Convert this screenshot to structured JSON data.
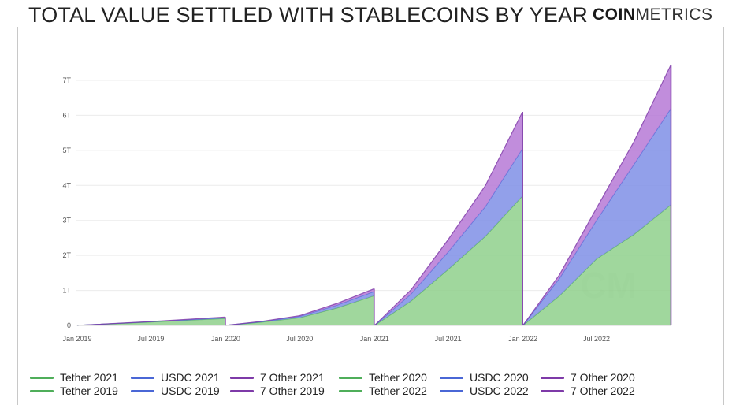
{
  "header": {
    "title": "TOTAL VALUE SETTLED WITH STABLECOINS BY YEAR",
    "brand_bold": "COIN",
    "brand_light": "METRICS",
    "watermark": "CM"
  },
  "colors": {
    "tether": "#8fd08c",
    "usdc": "#7f8fe6",
    "other": "#b679d6",
    "tether_line": "#4fae5a",
    "usdc_line": "#4a67d6",
    "other_line": "#7e3aa8",
    "grid": "#ececec"
  },
  "chart_data": {
    "type": "area",
    "stacked": true,
    "xlabel": "",
    "ylabel": "",
    "x_ticks": [
      "Jan 2019",
      "Jul 2019",
      "Jan 2020",
      "Jul 2020",
      "Jan 2021",
      "Jul 2021",
      "Jan 2022",
      "Jul 2022"
    ],
    "y_ticks": [
      "0",
      "1T",
      "2T",
      "3T",
      "4T",
      "5T",
      "6T",
      "7T"
    ],
    "ylim": [
      0,
      7
    ],
    "y_unit": "trillion USD",
    "grid": true,
    "legend_position": "bottom",
    "legend": [
      "Tether 2021",
      "USDC 2021",
      "7 Other 2021",
      "Tether 2020",
      "USDC 2020",
      "7 Other 2020",
      "Tether 2019",
      "USDC 2019",
      "7 Other 2019",
      "Tether 2022",
      "USDC 2022",
      "7 Other 2022"
    ],
    "series": [
      {
        "year": "2019",
        "x": [
          "2019-01-01",
          "2019-07-01",
          "2019-12-31"
        ],
        "tether": [
          0,
          0.1,
          0.2
        ],
        "usdc": [
          0,
          0.005,
          0.02
        ],
        "other": [
          0,
          0.005,
          0.02
        ]
      },
      {
        "year": "2020",
        "x": [
          "2020-01-01",
          "2020-04-01",
          "2020-07-01",
          "2020-10-01",
          "2020-12-31"
        ],
        "tether": [
          0,
          0.1,
          0.22,
          0.5,
          0.85
        ],
        "usdc": [
          0,
          0.01,
          0.04,
          0.08,
          0.12
        ],
        "other": [
          0,
          0.01,
          0.02,
          0.05,
          0.08
        ]
      },
      {
        "year": "2021",
        "x": [
          "2021-01-01",
          "2021-04-01",
          "2021-07-01",
          "2021-10-01",
          "2021-12-31"
        ],
        "tether": [
          0,
          0.7,
          1.6,
          2.55,
          3.7
        ],
        "usdc": [
          0,
          0.2,
          0.5,
          0.85,
          1.35
        ],
        "other": [
          0,
          0.12,
          0.35,
          0.6,
          1.05
        ]
      },
      {
        "year": "2022",
        "x": [
          "2022-01-01",
          "2022-04-01",
          "2022-07-01",
          "2022-10-01",
          "2022-12-31"
        ],
        "tether": [
          0,
          0.85,
          1.9,
          2.6,
          3.45
        ],
        "usdc": [
          0,
          0.5,
          1.1,
          2.0,
          2.75
        ],
        "other": [
          0,
          0.1,
          0.35,
          0.65,
          1.25
        ]
      }
    ]
  }
}
